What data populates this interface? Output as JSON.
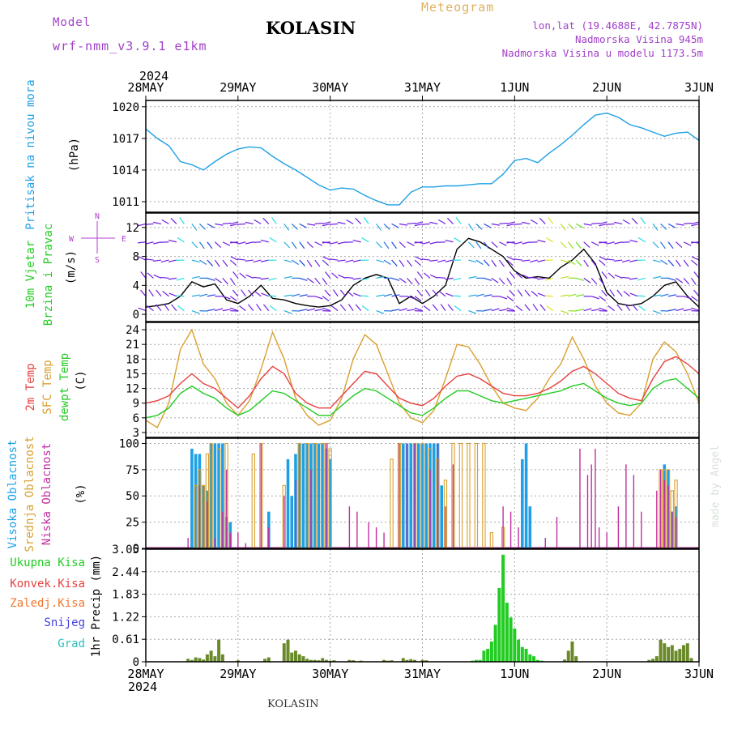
{
  "header": {
    "model_label": "Model",
    "model_name": "wrf-nmm_v3.9.1 e1km",
    "title": "KOLASIN",
    "meteogram": "Meteogram",
    "lonlat": "lon,lat (19.4688E, 42.7875N)",
    "elevation": "Nadmorska Visina 945m",
    "model_elevation": "Nadmorska Visina u modelu 1173.5m",
    "year_top": "2024",
    "year_bottom": "2024",
    "footer_station": "KOLASIN",
    "watermark": "made by Angel"
  },
  "colors": {
    "pressure": "#1fa0e6",
    "wind_label": "#22cc22",
    "wind_dir": "#b040d0",
    "temp2m": "#e84040",
    "sfc": "#d9a030",
    "dewpt": "#22cc22",
    "high_cloud": "#1fa0e6",
    "mid_cloud": "#d9a030",
    "low_cloud": "#c030a0",
    "header_purple": "#a040c8",
    "meteogram": "#e0b060"
  },
  "chart_data": [
    {
      "type": "line",
      "panel": "pressure",
      "ylabel_colored": "Pritisak na nivou mora",
      "ylabel_unit": "(hPa)",
      "x_ticks": [
        "28MAY",
        "29MAY",
        "30MAY",
        "31MAY",
        "1JUN",
        "2JUN",
        "3JUN"
      ],
      "y_ticks": [
        1011,
        1014,
        1017,
        1020
      ],
      "ylim": [
        1010.0,
        1020.6
      ],
      "x_hours": [
        0,
        3,
        6,
        9,
        12,
        15,
        18,
        21,
        24,
        27,
        30,
        33,
        36,
        39,
        42,
        45,
        48,
        51,
        54,
        57,
        60,
        63,
        66,
        69,
        72,
        75,
        78,
        81,
        84,
        87,
        90,
        93,
        96,
        99,
        102,
        105,
        108,
        111,
        114,
        117,
        120,
        123,
        126,
        129,
        132,
        135,
        138,
        141,
        144
      ],
      "series": [
        {
          "values": [
            1017.9,
            1017.0,
            1016.3,
            1014.8,
            1014.5,
            1014.0,
            1014.8,
            1015.5,
            1016.0,
            1016.2,
            1016.1,
            1015.3,
            1014.6,
            1014.0,
            1013.3,
            1012.6,
            1012.1,
            1012.3,
            1012.2,
            1011.6,
            1011.1,
            1010.7,
            1010.7,
            1011.9,
            1012.4,
            1012.4,
            1012.5,
            1012.5,
            1012.6,
            1012.7,
            1012.7,
            1013.6,
            1014.9,
            1015.1,
            1014.7,
            1015.6,
            1016.4,
            1017.3,
            1018.3,
            1019.2,
            1019.4,
            1019.0,
            1018.3,
            1018.0,
            1017.6,
            1017.2,
            1017.5,
            1017.6,
            1016.8
          ]
        }
      ]
    },
    {
      "type": "line",
      "panel": "wind",
      "ylabel_colored_1": "10m Vjetar",
      "ylabel_colored_2": "Brzina i Pravac",
      "ylabel_unit": "(m/s)",
      "compass": {
        "n": "N",
        "s": "S",
        "e": "E",
        "w": "W"
      },
      "y_ticks": [
        0,
        4,
        8,
        12
      ],
      "ylim": [
        -1,
        14
      ],
      "x_hours": [
        0,
        3,
        6,
        9,
        12,
        15,
        18,
        21,
        24,
        27,
        30,
        33,
        36,
        39,
        42,
        45,
        48,
        51,
        54,
        57,
        60,
        63,
        66,
        69,
        72,
        75,
        78,
        81,
        84,
        87,
        90,
        93,
        96,
        99,
        102,
        105,
        108,
        111,
        114,
        117,
        120,
        123,
        126,
        129,
        132,
        135,
        138,
        141,
        144
      ],
      "series": [
        {
          "name": "speed",
          "values": [
            1.0,
            1.2,
            1.5,
            2.5,
            4.5,
            3.8,
            4.2,
            2.0,
            1.5,
            2.5,
            4.0,
            2.2,
            2.0,
            1.5,
            1.2,
            1.0,
            1.2,
            2.0,
            4.0,
            5.0,
            5.5,
            5.0,
            1.5,
            2.5,
            1.5,
            2.5,
            4.0,
            9.0,
            10.5,
            10.0,
            9.0,
            8.0,
            6.0,
            5.0,
            5.2,
            5.0,
            6.5,
            7.5,
            9.0,
            7.0,
            3.0,
            1.5,
            1.2,
            1.5,
            2.5,
            4.0,
            4.5,
            2.5,
            1.0
          ]
        }
      ]
    },
    {
      "type": "line",
      "panel": "temperature",
      "ylabel_colored_1": "2m Temp",
      "ylabel_colored_2": "SFC Temp",
      "ylabel_colored_3": "dewpt Temp",
      "ylabel_unit": "(C)",
      "y_ticks": [
        3,
        6,
        9,
        12,
        15,
        18,
        21,
        24
      ],
      "ylim": [
        2,
        25.5
      ],
      "x_hours": [
        0,
        3,
        6,
        9,
        12,
        15,
        18,
        21,
        24,
        27,
        30,
        33,
        36,
        39,
        42,
        45,
        48,
        51,
        54,
        57,
        60,
        63,
        66,
        69,
        72,
        75,
        78,
        81,
        84,
        87,
        90,
        93,
        96,
        99,
        102,
        105,
        108,
        111,
        114,
        117,
        120,
        123,
        126,
        129,
        132,
        135,
        138,
        141,
        144
      ],
      "series": [
        {
          "name": "2m",
          "values": [
            9,
            9.5,
            10.5,
            13,
            15,
            13,
            12,
            10,
            8,
            10.5,
            14,
            16.5,
            15,
            11,
            9,
            8,
            8,
            10.5,
            13,
            15.5,
            15,
            12.5,
            10,
            9,
            8.5,
            10,
            12.5,
            14.5,
            15,
            14,
            12.5,
            11,
            10.5,
            10.5,
            11,
            12,
            13.5,
            15.5,
            16.5,
            15,
            13,
            11,
            10,
            9.5,
            14,
            17.5,
            18.5,
            17,
            15
          ]
        },
        {
          "name": "sfc",
          "values": [
            5.5,
            4,
            9,
            20,
            24,
            17,
            14,
            9,
            6.5,
            9.5,
            16,
            23.5,
            18,
            10,
            6.5,
            4.5,
            5.5,
            10,
            18,
            23,
            21,
            15,
            9,
            6,
            5,
            7.5,
            14,
            21,
            20.5,
            17,
            12.5,
            9,
            8,
            7.5,
            10,
            14,
            17,
            22.5,
            18,
            12.5,
            9,
            7,
            6.5,
            9,
            18,
            21.5,
            19.5,
            15,
            9
          ]
        },
        {
          "name": "dewpt",
          "values": [
            6,
            6.5,
            8,
            11,
            12.5,
            11,
            10,
            8,
            6.5,
            7.5,
            9.5,
            11.5,
            11,
            9.5,
            8,
            6.5,
            6.5,
            8.5,
            10.5,
            12,
            11.5,
            10,
            8.5,
            7,
            6.5,
            8,
            10,
            11.5,
            11.5,
            10.5,
            9.5,
            9,
            9.5,
            10,
            10.5,
            11,
            11.5,
            12.5,
            13,
            11.5,
            10,
            9,
            8.5,
            9,
            12,
            13.5,
            14,
            12,
            10
          ]
        }
      ]
    },
    {
      "type": "bar",
      "panel": "cloud",
      "ylabel_colored_1": "Visoka Oblacnost",
      "ylabel_colored_2": "Srednja Oblacnost",
      "ylabel_colored_3": "Niska Oblacnost",
      "ylabel_unit": "(%)",
      "y_ticks": [
        0,
        25,
        50,
        75,
        100
      ],
      "ylim": [
        0,
        105
      ],
      "series": [
        {
          "name": "high",
          "x_hours": [
            12,
            13,
            14,
            15,
            16,
            17,
            18,
            19,
            20,
            21,
            22,
            32,
            37,
            38,
            39,
            40,
            41,
            42,
            43,
            44,
            45,
            46,
            47,
            48,
            67,
            68,
            69,
            70,
            71,
            72,
            73,
            74,
            75,
            76,
            77,
            98,
            99,
            100,
            135,
            136,
            137,
            138
          ],
          "values": [
            95,
            90,
            90,
            60,
            55,
            100,
            100,
            100,
            100,
            30,
            25,
            35,
            85,
            50,
            90,
            100,
            100,
            100,
            100,
            100,
            100,
            100,
            95,
            85,
            100,
            100,
            100,
            100,
            100,
            100,
            100,
            100,
            100,
            100,
            60,
            85,
            100,
            40,
            80,
            75,
            35,
            40
          ]
        },
        {
          "name": "mid",
          "x_hours": [
            13,
            14,
            15,
            16,
            17,
            19,
            21,
            28,
            30,
            36,
            40,
            42,
            44,
            46,
            47,
            48,
            64,
            66,
            70,
            72,
            74,
            76,
            78,
            80,
            82,
            84,
            86,
            88,
            90,
            93,
            134,
            135,
            136,
            137,
            138
          ],
          "values": [
            60,
            75,
            60,
            90,
            100,
            95,
            100,
            90,
            100,
            60,
            100,
            100,
            100,
            100,
            100,
            95,
            85,
            100,
            100,
            100,
            95,
            85,
            65,
            100,
            100,
            100,
            100,
            100,
            15,
            20,
            75,
            75,
            75,
            55,
            65
          ]
        },
        {
          "name": "low",
          "x_hours": [
            11,
            14,
            16,
            18,
            20,
            21,
            22,
            24,
            26,
            30,
            32,
            36,
            39,
            43,
            47,
            53,
            55,
            58,
            60,
            62,
            66,
            68,
            70,
            74,
            76,
            78,
            80,
            93,
            95,
            97,
            104,
            107,
            113,
            115,
            116,
            117,
            118,
            120,
            123,
            125,
            127,
            129,
            133,
            134,
            135,
            136,
            137,
            138
          ],
          "values": [
            10,
            60,
            45,
            10,
            35,
            75,
            15,
            15,
            5,
            100,
            20,
            50,
            65,
            75,
            100,
            40,
            35,
            25,
            20,
            15,
            100,
            100,
            100,
            75,
            100,
            40,
            80,
            40,
            35,
            20,
            10,
            30,
            95,
            70,
            80,
            95,
            20,
            15,
            40,
            80,
            70,
            35,
            55,
            75,
            65,
            60,
            35,
            30
          ]
        }
      ]
    },
    {
      "type": "bar",
      "panel": "precip",
      "ylabel_unit": "1hr Precip (mm)",
      "legend": [
        {
          "label": "Ukupna Kisa",
          "color": "#22cc22"
        },
        {
          "label": "Konvek.Kisa",
          "color": "#e84040"
        },
        {
          "label": "Zaledj.Kisa",
          "color": "#f07830"
        },
        {
          "label": "Snijeg",
          "color": "#4040e0"
        },
        {
          "label": "Grad",
          "color": "#30c0c0"
        }
      ],
      "y_ticks": [
        0,
        0.61,
        1.22,
        1.83,
        2.44,
        3.05
      ],
      "ylim": [
        0,
        3.05
      ],
      "series": [
        {
          "name": "Ukupna Kisa",
          "x_hours": [
            11,
            12,
            13,
            14,
            15,
            16,
            17,
            18,
            19,
            20,
            24,
            31,
            32,
            36,
            37,
            38,
            39,
            40,
            41,
            42,
            43,
            44,
            45,
            46,
            47,
            48,
            49,
            53,
            54,
            56,
            62,
            63,
            64,
            67,
            68,
            69,
            70,
            72,
            73,
            85,
            86,
            87,
            88,
            89,
            90,
            91,
            92,
            93,
            94,
            95,
            96,
            97,
            98,
            99,
            100,
            101,
            102,
            103,
            109,
            110,
            111,
            112,
            131,
            132,
            133,
            134,
            135,
            136,
            137,
            138,
            139,
            140,
            141,
            142
          ],
          "values": [
            0.08,
            0.05,
            0.12,
            0.1,
            0.06,
            0.2,
            0.3,
            0.15,
            0.6,
            0.2,
            0.04,
            0.08,
            0.12,
            0.5,
            0.6,
            0.25,
            0.3,
            0.2,
            0.15,
            0.08,
            0.05,
            0.05,
            0.04,
            0.1,
            0.05,
            0.03,
            0.04,
            0.05,
            0.04,
            0.03,
            0.05,
            0.03,
            0.04,
            0.1,
            0.05,
            0.07,
            0.05,
            0.05,
            0.04,
            0.03,
            0.05,
            0.05,
            0.3,
            0.35,
            0.55,
            1.0,
            2.0,
            2.9,
            1.6,
            1.2,
            0.9,
            0.6,
            0.4,
            0.35,
            0.2,
            0.15,
            0.05,
            0.03,
            0.06,
            0.3,
            0.55,
            0.15,
            0.05,
            0.08,
            0.15,
            0.6,
            0.5,
            0.4,
            0.45,
            0.3,
            0.35,
            0.45,
            0.5,
            0.1
          ]
        }
      ]
    }
  ]
}
